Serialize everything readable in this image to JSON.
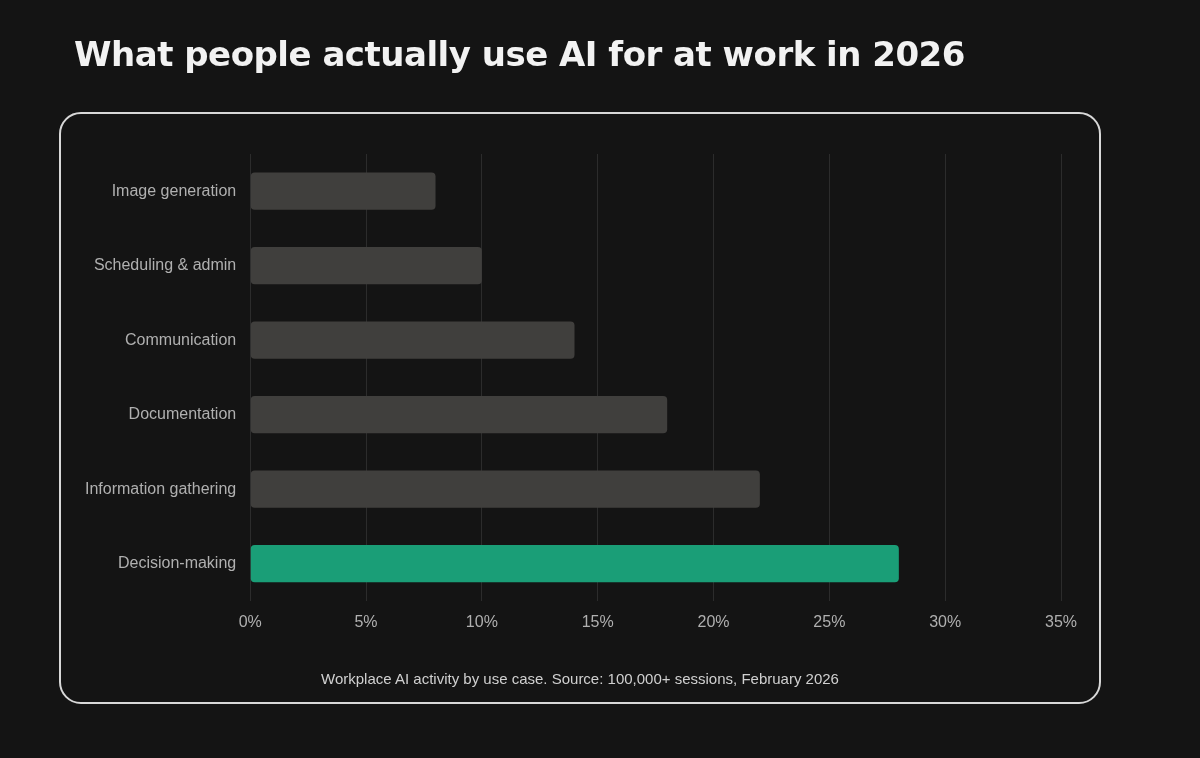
{
  "chart_data": {
    "type": "bar",
    "orientation": "horizontal",
    "title": "What people actually use AI for at work in 2026",
    "categories": [
      "Image generation",
      "Scheduling & admin",
      "Communication",
      "Documentation",
      "Information gathering",
      "Decision-making"
    ],
    "values": [
      8,
      10,
      14,
      18,
      22,
      28
    ],
    "colors": [
      "#403f3d",
      "#403f3d",
      "#403f3d",
      "#403f3d",
      "#403f3d",
      "#1a9e77"
    ],
    "xlim": [
      0,
      35
    ],
    "xticks": [
      {
        "value": 0,
        "label": "0%"
      },
      {
        "value": 5,
        "label": "5%"
      },
      {
        "value": 10,
        "label": "10%"
      },
      {
        "value": 15,
        "label": "15%"
      },
      {
        "value": 20,
        "label": "20%"
      },
      {
        "value": 25,
        "label": "25%"
      },
      {
        "value": 30,
        "label": "30%"
      },
      {
        "value": 35,
        "label": "35%"
      }
    ],
    "grid": "x",
    "annotations": [
      "Workplace AI activity by use case. Source: 100,000+ sessions, February 2026"
    ]
  }
}
